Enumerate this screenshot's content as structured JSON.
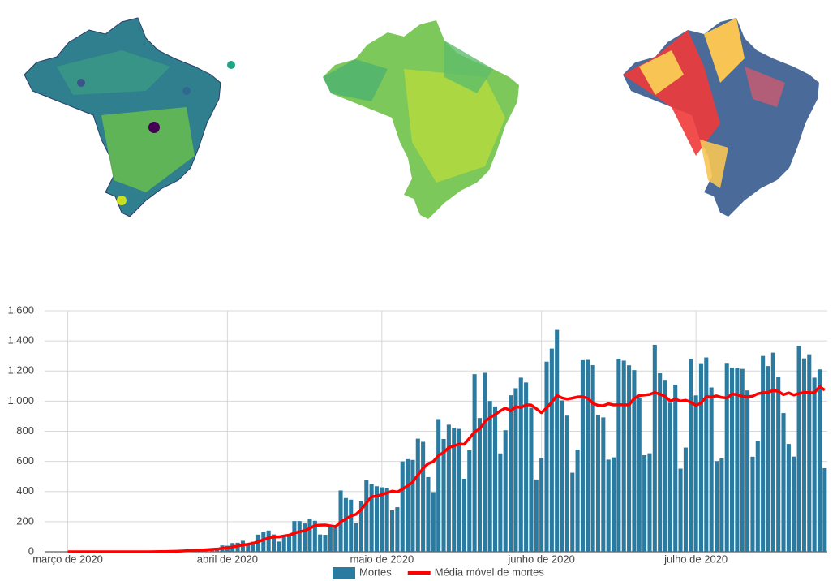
{
  "chart_data": {
    "type": "bar",
    "categories": [
      null,
      null,
      null,
      null,
      "março de 2020",
      null,
      null,
      null,
      null,
      null,
      null,
      null,
      null,
      null,
      null,
      null,
      null,
      null,
      null,
      null,
      null,
      null,
      null,
      null,
      null,
      null,
      null,
      null,
      null,
      null,
      null,
      null,
      null,
      null,
      null,
      "abril de 2020",
      null,
      null,
      null,
      null,
      null,
      null,
      null,
      null,
      null,
      null,
      null,
      null,
      null,
      null,
      null,
      null,
      null,
      null,
      null,
      null,
      null,
      null,
      null,
      null,
      null,
      null,
      null,
      null,
      null,
      "maio de 2020",
      null,
      null,
      null,
      null,
      null,
      null,
      null,
      null,
      null,
      null,
      null,
      null,
      null,
      null,
      null,
      null,
      null,
      null,
      null,
      null,
      null,
      null,
      null,
      null,
      null,
      null,
      null,
      null,
      null,
      null,
      "junho de 2020",
      null,
      null,
      null,
      null,
      null,
      null,
      null,
      null,
      null,
      null,
      null,
      null,
      null,
      null,
      null,
      null,
      null,
      null,
      null,
      null,
      null,
      null,
      null,
      null,
      null,
      null,
      null,
      null,
      null,
      "julho de 2020",
      null,
      null,
      null,
      null,
      null,
      null,
      null,
      null,
      null,
      null,
      null,
      null,
      null,
      null,
      null,
      null,
      null,
      null,
      null,
      null,
      null,
      null,
      null,
      null,
      null
    ],
    "series": [
      {
        "name": "Mortes",
        "color": "#2b7ba0",
        "values": [
          0,
          0,
          0,
          0,
          0,
          0,
          0,
          0,
          0,
          0,
          0,
          0,
          0,
          0,
          0,
          0,
          0,
          0,
          0,
          0,
          1,
          3,
          3,
          4,
          7,
          7,
          9,
          12,
          13,
          18,
          15,
          22,
          22,
          23,
          42,
          40,
          58,
          60,
          73,
          54,
          67,
          114,
          133,
          141,
          115,
          68,
          99,
          105,
          204,
          204,
          188,
          217,
          206,
          115,
          113,
          166,
          165,
          407,
          357,
          346,
          189,
          338,
          474,
          449,
          435,
          428,
          421,
          275,
          296,
          600,
          615,
          610,
          751,
          730,
          496,
          396,
          881,
          749,
          844,
          824,
          816,
          485,
          674,
          1179,
          888,
          1188,
          1001,
          965,
          653,
          807,
          1039,
          1086,
          1156,
          1124,
          956,
          480,
          623,
          1262,
          1349,
          1473,
          1005,
          904,
          525,
          679,
          1272,
          1274,
          1239,
          909,
          892,
          612,
          627,
          1282,
          1269,
          1238,
          1206,
          1022,
          641,
          654,
          1374,
          1185,
          1141,
          990,
          1109,
          552,
          692,
          1280,
          1038,
          1252,
          1290,
          1091,
          602,
          620,
          1254,
          1223,
          1220,
          1214,
          1071,
          631,
          733,
          1300,
          1233,
          1322,
          1163,
          921,
          716,
          632,
          1367,
          1284,
          1311,
          1156,
          1211,
          555
        ]
      },
      {
        "name": "Média móvel de mortes",
        "color": "#ff0000",
        "values": [
          null,
          null,
          null,
          null,
          0,
          0,
          0,
          0,
          0,
          0,
          0,
          0,
          0,
          0,
          0,
          0,
          0,
          0,
          0,
          0,
          0.1,
          0.6,
          1,
          1.6,
          2.6,
          3.6,
          4.9,
          6.4,
          7.9,
          10,
          11.6,
          13.7,
          15.9,
          17.9,
          22.1,
          26,
          31.7,
          38.1,
          45.4,
          50,
          56.3,
          66.6,
          79.9,
          91.7,
          99.6,
          98.9,
          105.3,
          110.7,
          123.6,
          133.7,
          140.4,
          155,
          174.7,
          177,
          178.1,
          172.7,
          167.1,
          198.4,
          218.4,
          238.4,
          249,
          281.1,
          325.1,
          365.7,
          369.7,
          379.9,
          390.6,
          402.9,
          396.9,
          414.9,
          438.6,
          463.6,
          509.7,
          553.9,
          585.4,
          599.7,
          639.9,
          659,
          692.4,
          702.9,
          715.1,
          713.6,
          753.3,
          795.9,
          815.7,
          864.9,
          890.1,
          911.4,
          935.4,
          954.4,
          934.4,
          962.7,
          958.1,
          975.7,
          974.4,
          949.7,
          923.4,
          955.3,
          992.9,
          1038.1,
          1021.1,
          1013.7,
          1020.1,
          1028.1,
          1029.6,
          1018.9,
          985.4,
          971.7,
          970,
          982.4,
          975,
          976.4,
          975.7,
          975.6,
          1018,
          1036.6,
          1040.7,
          1044.6,
          1057.7,
          1045.7,
          1031.9,
          1001,
          1013.4,
          1000.7,
          1006.1,
          992.7,
          971.7,
          987.6,
          1030.4,
          1027.9,
          1035,
          1024.7,
          1021,
          1047.4,
          1042.9,
          1032,
          1029.1,
          1033.3,
          1049.4,
          1056,
          1057.4,
          1072,
          1064.7,
          1043.3,
          1055.4,
          1041,
          1050.6,
          1057.9,
          1056.3,
          1055.3,
          1096.7,
          1073.7
        ]
      }
    ],
    "ylim": [
      0,
      1600
    ],
    "yticks": [
      0,
      200,
      400,
      600,
      800,
      {
        "value": 1000,
        "label": "1.000"
      },
      {
        "value": 1200,
        "label": "1.200"
      },
      {
        "value": 1400,
        "label": "1.400"
      },
      {
        "value": 1600,
        "label": "1.600"
      }
    ],
    "grid": true,
    "legend": "bottom"
  }
}
